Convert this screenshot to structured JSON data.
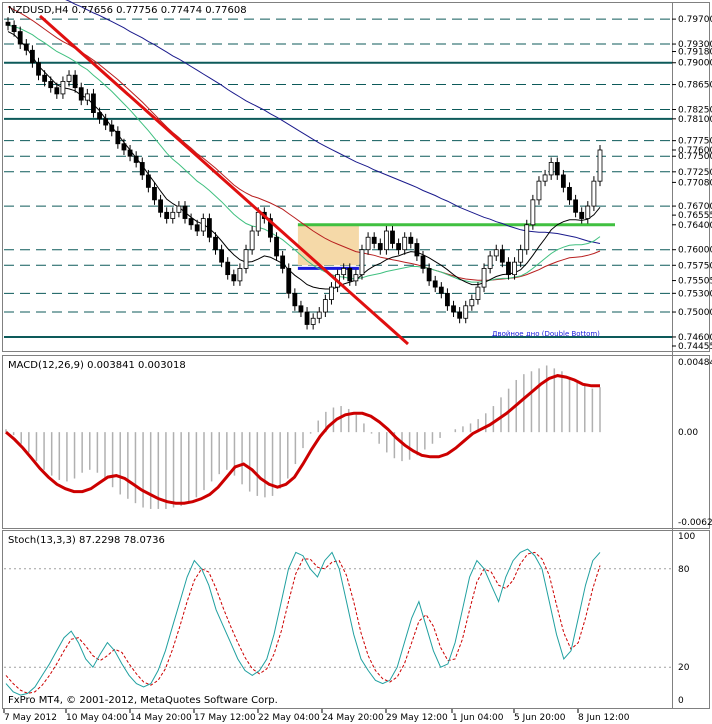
{
  "window": {
    "symbol_line": "NZDUSD,H4  0.77656 0.77756 0.77474 0.77608",
    "macd_line": "MACD(12,26,9) 0.003841 0.003018",
    "stoch_line": "Stoch(13,3,3) 87.2298 78.0736",
    "copyright": "FxPro MT4, © 2001-2012, MetaQuotes Software Corp.",
    "annotation": "Двойное дно (Double Bottom)"
  },
  "colors": {
    "background": "#ffffff",
    "candle": "#000000",
    "ma_fast": "#000000",
    "ma_green": "#40c080",
    "ma_red": "#b82020",
    "ma_blue": "#1a1a8c",
    "trendline": "#e01010",
    "support_green": "#40c040",
    "neckline_blue": "#1a1adc",
    "box_fill": "#f5d9a8",
    "level_line": "#0d5a5a",
    "macd_hist": "#b0b0b0",
    "macd_signal": "#cc0000",
    "stoch_main": "#20a0a0",
    "stoch_signal": "#cc0000"
  },
  "chart_data": [
    {
      "type": "candlestick",
      "title": "NZDUSD,H4",
      "ylim": [
        0.74455,
        0.7975
      ],
      "price_labels": [
        "0.79700",
        "0.79300",
        "0.79180",
        "0.79000",
        "0.78650",
        "0.78250",
        "0.78100",
        "0.77750",
        "0.77600",
        "0.77500",
        "0.77250",
        "0.77080",
        "0.76700",
        "0.76555",
        "0.76400",
        "0.76000",
        "0.75750",
        "0.75505",
        "0.75300",
        "0.75000",
        "0.74600",
        "0.74455"
      ],
      "levels_solid": [
        0.79,
        0.781,
        0.746
      ],
      "levels_dashed": [
        0.797,
        0.793,
        0.7865,
        0.7825,
        0.7775,
        0.775,
        0.7725,
        0.767,
        0.76,
        0.7575,
        0.753,
        0.75
      ],
      "support_level": 0.764,
      "neckline_level": 0.757,
      "x_labels": [
        "7 May 2012",
        "10 May 04:00",
        "14 May 20:00",
        "17 May 12:00",
        "22 May 04:00",
        "24 May 20:00",
        "29 May 12:00",
        "1 Jun 04:00",
        "5 Jun 20:00",
        "8 Jun 12:00"
      ],
      "close": [
        0.796,
        0.795,
        0.793,
        0.792,
        0.79,
        0.788,
        0.787,
        0.786,
        0.785,
        0.787,
        0.788,
        0.786,
        0.784,
        0.785,
        0.782,
        0.781,
        0.78,
        0.779,
        0.777,
        0.776,
        0.775,
        0.774,
        0.772,
        0.77,
        0.768,
        0.766,
        0.765,
        0.766,
        0.767,
        0.765,
        0.764,
        0.763,
        0.765,
        0.762,
        0.76,
        0.758,
        0.756,
        0.755,
        0.757,
        0.76,
        0.763,
        0.766,
        0.765,
        0.762,
        0.759,
        0.757,
        0.753,
        0.751,
        0.75,
        0.748,
        0.749,
        0.75,
        0.752,
        0.754,
        0.756,
        0.757,
        0.755,
        0.756,
        0.76,
        0.762,
        0.761,
        0.76,
        0.763,
        0.761,
        0.76,
        0.762,
        0.761,
        0.759,
        0.757,
        0.755,
        0.754,
        0.753,
        0.751,
        0.75,
        0.749,
        0.751,
        0.752,
        0.754,
        0.757,
        0.759,
        0.76,
        0.758,
        0.756,
        0.758,
        0.76,
        0.764,
        0.768,
        0.771,
        0.772,
        0.774,
        0.772,
        0.77,
        0.768,
        0.766,
        0.765,
        0.767,
        0.771,
        0.776
      ],
      "ma_fast": [
        0.795,
        0.7945,
        0.7935,
        0.7925,
        0.791,
        0.7895,
        0.7885,
        0.7875,
        0.7865,
        0.786,
        0.7858,
        0.7855,
        0.7848,
        0.7843,
        0.7833,
        0.7823,
        0.781,
        0.7797,
        0.7785,
        0.7772,
        0.776,
        0.7747,
        0.7735,
        0.7721,
        0.7708,
        0.7694,
        0.7681,
        0.7674,
        0.7668,
        0.766,
        0.7652,
        0.7645,
        0.7641,
        0.7634,
        0.7625,
        0.7614,
        0.7602,
        0.7592,
        0.7584,
        0.758,
        0.7581,
        0.7585,
        0.759,
        0.7588,
        0.7583,
        0.7578,
        0.7568,
        0.7559,
        0.7552,
        0.7544,
        0.754,
        0.7538,
        0.7537,
        0.7537,
        0.754,
        0.7545,
        0.7548,
        0.7551,
        0.756,
        0.7568,
        0.7574,
        0.7578,
        0.7584,
        0.7588,
        0.759,
        0.7594,
        0.7597,
        0.7596,
        0.7592,
        0.7587,
        0.7581,
        0.7575,
        0.7568,
        0.756,
        0.7553,
        0.7548,
        0.7544,
        0.7544,
        0.7547,
        0.7552,
        0.7557,
        0.756,
        0.7561,
        0.7563,
        0.7568,
        0.7578,
        0.7591,
        0.7605,
        0.7618,
        0.7632,
        0.764,
        0.7645,
        0.7648,
        0.7648,
        0.7647,
        0.7649,
        0.7656,
        0.7668
      ],
      "ma_green": [
        0.796,
        0.7958,
        0.7955,
        0.795,
        0.7945,
        0.7938,
        0.7932,
        0.7925,
        0.7918,
        0.7913,
        0.7908,
        0.7902,
        0.7895,
        0.7889,
        0.788,
        0.7872,
        0.7863,
        0.7854,
        0.7844,
        0.7834,
        0.7824,
        0.7813,
        0.7802,
        0.7791,
        0.7779,
        0.7767,
        0.7755,
        0.7745,
        0.7737,
        0.7728,
        0.7719,
        0.771,
        0.7703,
        0.7695,
        0.7686,
        0.7677,
        0.7667,
        0.7657,
        0.7649,
        0.7642,
        0.7638,
        0.7636,
        0.7633,
        0.7628,
        0.7622,
        0.7616,
        0.7608,
        0.76,
        0.7591,
        0.7582,
        0.7575,
        0.7569,
        0.7564,
        0.756,
        0.7557,
        0.7556,
        0.7554,
        0.7553,
        0.7555,
        0.7558,
        0.756,
        0.7562,
        0.7565,
        0.7567,
        0.7569,
        0.7571,
        0.7573,
        0.7573,
        0.7572,
        0.757,
        0.7567,
        0.7564,
        0.756,
        0.7556,
        0.7552,
        0.755,
        0.7548,
        0.7548,
        0.7549,
        0.7551,
        0.7553,
        0.7554,
        0.7554,
        0.7556,
        0.7558,
        0.7563,
        0.757,
        0.7578,
        0.7586,
        0.7594,
        0.76,
        0.7604,
        0.7607,
        0.7608,
        0.7608,
        0.761,
        0.7614,
        0.7621
      ],
      "ma_red": [
        0.799,
        0.7985,
        0.798,
        0.7974,
        0.7968,
        0.7961,
        0.7954,
        0.7947,
        0.794,
        0.7934,
        0.7929,
        0.7923,
        0.7917,
        0.7911,
        0.7904,
        0.7897,
        0.7889,
        0.7881,
        0.7873,
        0.7864,
        0.7855,
        0.7846,
        0.7837,
        0.7827,
        0.7817,
        0.7807,
        0.7797,
        0.7788,
        0.778,
        0.7771,
        0.7763,
        0.7754,
        0.7747,
        0.7739,
        0.7731,
        0.7722,
        0.7713,
        0.7704,
        0.7697,
        0.7691,
        0.7686,
        0.7683,
        0.7679,
        0.7675,
        0.767,
        0.7665,
        0.7658,
        0.7651,
        0.7644,
        0.7637,
        0.763,
        0.7624,
        0.7618,
        0.7613,
        0.7609,
        0.7605,
        0.7601,
        0.7597,
        0.7595,
        0.7593,
        0.7591,
        0.7588,
        0.7586,
        0.7584,
        0.7582,
        0.758,
        0.7578,
        0.7576,
        0.7573,
        0.757,
        0.7567,
        0.7564,
        0.7561,
        0.7558,
        0.7555,
        0.7553,
        0.7552,
        0.7551,
        0.7551,
        0.7551,
        0.7552,
        0.7553,
        0.7554,
        0.7555,
        0.7557,
        0.756,
        0.7564,
        0.7568,
        0.7573,
        0.7577,
        0.7581,
        0.7584,
        0.7587,
        0.7588,
        0.7589,
        0.7591,
        0.7594,
        0.7598
      ],
      "ma_blue": [
        0.804,
        0.8036,
        0.8032,
        0.8028,
        0.8024,
        0.802,
        0.8016,
        0.8012,
        0.8007,
        0.8003,
        0.7999,
        0.7994,
        0.799,
        0.7985,
        0.798,
        0.7976,
        0.7971,
        0.7966,
        0.7961,
        0.7956,
        0.795,
        0.7945,
        0.794,
        0.7934,
        0.7929,
        0.7923,
        0.7917,
        0.7911,
        0.7906,
        0.79,
        0.7894,
        0.7888,
        0.7882,
        0.7876,
        0.787,
        0.7864,
        0.7857,
        0.7851,
        0.7845,
        0.7839,
        0.7834,
        0.7829,
        0.7824,
        0.7818,
        0.7813,
        0.7807,
        0.7801,
        0.7795,
        0.7789,
        0.7783,
        0.7777,
        0.7771,
        0.7766,
        0.7761,
        0.7756,
        0.7751,
        0.7746,
        0.7741,
        0.7737,
        0.7733,
        0.7728,
        0.7724,
        0.772,
        0.7716,
        0.7712,
        0.7708,
        0.7704,
        0.77,
        0.7695,
        0.7691,
        0.7687,
        0.7682,
        0.7678,
        0.7673,
        0.7668,
        0.7664,
        0.766,
        0.7656,
        0.7652,
        0.7649,
        0.7645,
        0.7642,
        0.7638,
        0.7635,
        0.7632,
        0.763,
        0.7629,
        0.7628,
        0.7628,
        0.7627,
        0.7626,
        0.7624,
        0.7622,
        0.762,
        0.7617,
        0.7614,
        0.7612,
        0.761
      ]
    },
    {
      "type": "line",
      "title": "MACD(12,26,9)",
      "ylim": [
        -0.0062,
        0.00484
      ],
      "y_labels": [
        "0.00484",
        "0.00",
        "-0.00620"
      ],
      "histogram": [
        0.0002,
        -0.0002,
        -0.0008,
        -0.0014,
        -0.002,
        -0.0026,
        -0.003,
        -0.0033,
        -0.0034,
        -0.0032,
        -0.0028,
        -0.0026,
        -0.0028,
        -0.0033,
        -0.0038,
        -0.0043,
        -0.0046,
        -0.0049,
        -0.0052,
        -0.0053,
        -0.0053,
        -0.0053,
        -0.0052,
        -0.0051,
        -0.0049,
        -0.0045,
        -0.004,
        -0.0034,
        -0.0029,
        -0.0026,
        -0.003,
        -0.0036,
        -0.0041,
        -0.0044,
        -0.0045,
        -0.0044,
        -0.0039,
        -0.0032,
        -0.0022,
        -0.0011,
        -0.0001,
        0.0008,
        0.0014,
        0.0017,
        0.0018,
        0.0016,
        0.0012,
        0.0006,
        -0.0001,
        -0.0008,
        -0.0014,
        -0.0018,
        -0.002,
        -0.0019,
        -0.0016,
        -0.0012,
        -0.0008,
        -0.0004,
        0.0,
        0.0002,
        0.0004,
        0.0006,
        0.0009,
        0.0013,
        0.0018,
        0.0024,
        0.003,
        0.0036,
        0.004,
        0.0042,
        0.0044,
        0.0046,
        0.0044,
        0.0042,
        0.0038,
        0.0034,
        0.0032,
        0.003,
        0.0031
      ],
      "signal": [
        0.0,
        -0.0005,
        -0.0011,
        -0.0018,
        -0.0025,
        -0.0031,
        -0.0036,
        -0.0039,
        -0.0041,
        -0.0041,
        -0.0039,
        -0.0035,
        -0.0031,
        -0.003,
        -0.0032,
        -0.0036,
        -0.004,
        -0.0043,
        -0.0046,
        -0.0048,
        -0.0049,
        -0.0049,
        -0.0048,
        -0.0046,
        -0.0043,
        -0.0038,
        -0.0031,
        -0.0024,
        -0.0022,
        -0.0026,
        -0.0032,
        -0.0036,
        -0.0038,
        -0.0036,
        -0.0031,
        -0.0022,
        -0.0012,
        -0.0003,
        0.0004,
        0.0009,
        0.0012,
        0.0013,
        0.0013,
        0.0011,
        0.0007,
        0.0002,
        -0.0004,
        -0.0009,
        -0.0013,
        -0.0016,
        -0.0017,
        -0.0017,
        -0.0015,
        -0.0011,
        -0.0006,
        -0.0001,
        0.0002,
        0.0005,
        0.0009,
        0.0013,
        0.0018,
        0.0023,
        0.0028,
        0.0033,
        0.0037,
        0.0039,
        0.0038,
        0.0036,
        0.0033,
        0.0032,
        0.0032
      ]
    },
    {
      "type": "line",
      "title": "Stoch(13,3,3)",
      "ylim": [
        0,
        100
      ],
      "y_labels": [
        "100",
        "80",
        "20",
        "0"
      ],
      "main": [
        10,
        5,
        3,
        4,
        8,
        15,
        22,
        30,
        38,
        42,
        35,
        25,
        20,
        28,
        35,
        30,
        22,
        15,
        10,
        8,
        10,
        18,
        30,
        45,
        60,
        75,
        85,
        80,
        70,
        55,
        45,
        35,
        25,
        18,
        15,
        18,
        25,
        40,
        60,
        80,
        90,
        88,
        80,
        75,
        85,
        90,
        80,
        60,
        40,
        25,
        18,
        12,
        10,
        12,
        20,
        35,
        50,
        60,
        45,
        30,
        20,
        22,
        35,
        55,
        75,
        85,
        80,
        70,
        60,
        75,
        85,
        90,
        92,
        88,
        80,
        60,
        40,
        25,
        30,
        50,
        70,
        85,
        90
      ],
      "signal": [
        15,
        10,
        6,
        4,
        5,
        9,
        15,
        22,
        30,
        37,
        38,
        33,
        27,
        24,
        27,
        31,
        29,
        22,
        16,
        11,
        9,
        12,
        19,
        31,
        45,
        60,
        73,
        80,
        78,
        68,
        56,
        45,
        35,
        26,
        19,
        16,
        19,
        28,
        42,
        60,
        77,
        86,
        86,
        81,
        80,
        84,
        85,
        76,
        60,
        41,
        27,
        18,
        13,
        11,
        14,
        22,
        35,
        48,
        52,
        45,
        32,
        24,
        25,
        37,
        55,
        72,
        80,
        78,
        70,
        68,
        73,
        83,
        89,
        90,
        86,
        76,
        58,
        41,
        31,
        35,
        50,
        68,
        82
      ]
    }
  ]
}
